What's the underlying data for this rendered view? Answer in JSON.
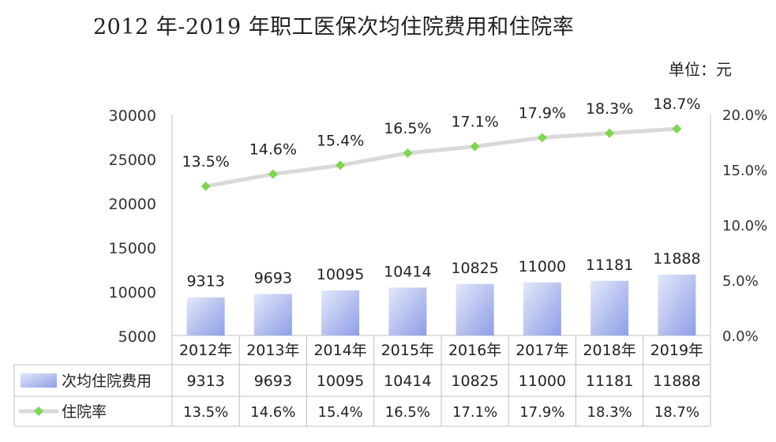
{
  "chart_data": {
    "type": "bar+line",
    "title": "2012 年-2019 年职工医保次均住院费用和住院率",
    "unit_note": "单位：元",
    "categories": [
      "2012年",
      "2013年",
      "2014年",
      "2015年",
      "2016年",
      "2017年",
      "2018年",
      "2019年"
    ],
    "series": [
      {
        "name": "次均住院费用",
        "type": "bar",
        "axis": "left",
        "values": [
          9313,
          9693,
          10095,
          10414,
          10825,
          11000,
          11181,
          11888
        ],
        "labels": [
          "9313",
          "9693",
          "10095",
          "10414",
          "10825",
          "11000",
          "11181",
          "11888"
        ]
      },
      {
        "name": "住院率",
        "type": "line",
        "axis": "right",
        "values": [
          13.5,
          14.6,
          15.4,
          16.5,
          17.1,
          17.9,
          18.3,
          18.7
        ],
        "labels": [
          "13.5%",
          "14.6%",
          "15.4%",
          "16.5%",
          "17.1%",
          "17.9%",
          "18.3%",
          "18.7%"
        ]
      }
    ],
    "y_left": {
      "min": 5000,
      "max": 30000,
      "ticks": [
        "30000",
        "25000",
        "20000",
        "15000",
        "10000",
        "5000"
      ]
    },
    "y_right": {
      "min": 0,
      "max": 20,
      "ticks": [
        "20.0%",
        "15.0%",
        "10.0%",
        "5.0%",
        "0.0%"
      ]
    },
    "colors": {
      "bar_top": "#e3e8fa",
      "bar_bottom": "#8e9ee6",
      "line": "#d9d9d9",
      "marker": "#7fd650"
    },
    "legend_placement": "data-table"
  }
}
